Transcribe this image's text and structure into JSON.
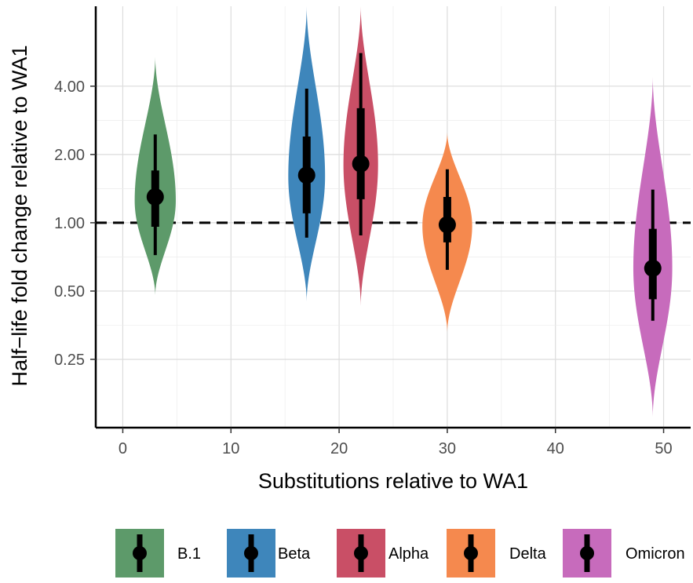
{
  "chart_data": {
    "type": "violin",
    "title": "",
    "xlabel": "Substitutions relative to WA1",
    "ylabel": "Half−life fold change relative to WA1",
    "x_axis": {
      "lim": [
        -2.5,
        52.5
      ],
      "ticks": [
        0,
        10,
        20,
        30,
        40,
        50
      ],
      "tick_labels": [
        "0",
        "10",
        "20",
        "30",
        "40",
        "50"
      ]
    },
    "y_axis": {
      "scale": "log2",
      "lim": [
        0.125,
        9.0
      ],
      "ticks": [
        0.25,
        0.5,
        1,
        2,
        4
      ],
      "tick_labels": [
        "0.25",
        "0.50",
        "1.00",
        "2.00",
        "4.00"
      ]
    },
    "grid": true,
    "reference_line": {
      "y": 1.0,
      "style": "dashed"
    },
    "legend_position": "bottom",
    "series": [
      {
        "name": "B.1",
        "color": "#5d9a6a",
        "x": 3,
        "median": 1.3,
        "inner_interval": [
          0.96,
          1.7
        ],
        "outer_interval": [
          0.72,
          2.45
        ],
        "violin_range": [
          0.48,
          5.4
        ],
        "peak_density_y": 1.25,
        "max_half_width": 1.9
      },
      {
        "name": "Beta",
        "color": "#3e86bb",
        "x": 17,
        "median": 1.62,
        "inner_interval": [
          1.1,
          2.4
        ],
        "outer_interval": [
          0.86,
          3.9
        ],
        "violin_range": [
          0.45,
          9.0
        ],
        "peak_density_y": 1.6,
        "max_half_width": 1.7
      },
      {
        "name": "Alpha",
        "color": "#c94f66",
        "x": 22,
        "median": 1.82,
        "inner_interval": [
          1.27,
          3.2
        ],
        "outer_interval": [
          0.88,
          5.6
        ],
        "violin_range": [
          0.43,
          9.0
        ],
        "peak_density_y": 1.8,
        "max_half_width": 1.6
      },
      {
        "name": "Delta",
        "color": "#f5894e",
        "x": 30,
        "median": 0.98,
        "inner_interval": [
          0.82,
          1.3
        ],
        "outer_interval": [
          0.62,
          1.72
        ],
        "violin_range": [
          0.33,
          2.5
        ],
        "peak_density_y": 0.97,
        "max_half_width": 2.3
      },
      {
        "name": "Omicron",
        "color": "#c76bbc",
        "x": 49,
        "median": 0.63,
        "inner_interval": [
          0.46,
          0.94
        ],
        "outer_interval": [
          0.37,
          1.4
        ],
        "violin_range": [
          0.14,
          4.4
        ],
        "peak_density_y": 0.63,
        "max_half_width": 1.8
      }
    ]
  }
}
